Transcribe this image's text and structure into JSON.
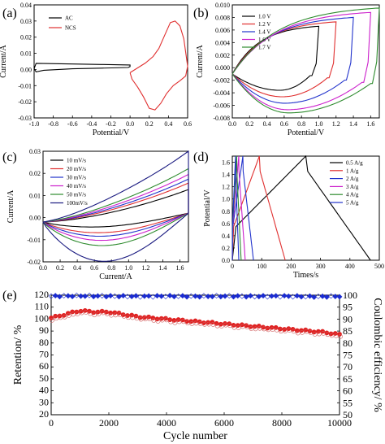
{
  "panels": {
    "a": {
      "label": "(a)"
    },
    "b": {
      "label": "(b)"
    },
    "c": {
      "label": "(c)"
    },
    "d": {
      "label": "(d)"
    },
    "e": {
      "label": "(e)"
    }
  },
  "chart_data": [
    {
      "id": "a",
      "type": "line",
      "xlabel": "Potential/V",
      "ylabel": "Current/A",
      "xlim": [
        -1.0,
        0.6
      ],
      "ylim": [
        -0.03,
        0.04
      ],
      "xticks": [
        "-1.0",
        "-0.8",
        "-0.6",
        "-0.4",
        "-0.2",
        "0.0",
        "0.2",
        "0.4",
        "0.6"
      ],
      "yticks": [
        "-0.03",
        "-0.02",
        "-0.01",
        "0.00",
        "0.01",
        "0.02",
        "0.03",
        "0.04"
      ],
      "legend_position": "top-left",
      "series": [
        {
          "name": "AC",
          "color": "#000000",
          "x": [
            -1.0,
            -0.98,
            -0.9,
            -0.6,
            -0.3,
            0.0,
            0.0,
            -0.02,
            -0.3,
            -0.6,
            -0.9,
            -0.98,
            -1.0
          ],
          "y": [
            0.0005,
            0.0038,
            0.0037,
            0.0034,
            0.0031,
            0.0028,
            0.0018,
            0.0012,
            0.0008,
            0.0004,
            -0.0005,
            -0.0015,
            0.0005
          ]
        },
        {
          "name": "NCS",
          "color": "#e03030",
          "x": [
            0.0,
            0.08,
            0.16,
            0.24,
            0.3,
            0.36,
            0.42,
            0.47,
            0.52,
            0.56,
            0.6,
            0.58,
            0.52,
            0.45,
            0.38,
            0.32,
            0.26,
            0.2,
            0.14,
            0.08,
            0.02,
            0.0
          ],
          "y": [
            -0.002,
            0.001,
            0.004,
            0.008,
            0.013,
            0.021,
            0.029,
            0.03,
            0.027,
            0.019,
            0.002,
            -0.004,
            -0.007,
            -0.01,
            -0.015,
            -0.021,
            -0.025,
            -0.024,
            -0.017,
            -0.011,
            -0.006,
            -0.002
          ]
        }
      ]
    },
    {
      "id": "b",
      "type": "line",
      "xlabel": "Potential/V",
      "ylabel": "Current/A",
      "xlim": [
        0.0,
        1.7
      ],
      "ylim": [
        -0.008,
        0.01
      ],
      "xticks": [
        "0.0",
        "0.2",
        "0.4",
        "0.6",
        "0.8",
        "1.0",
        "1.2",
        "1.4",
        "1.6"
      ],
      "yticks": [
        "-0.008",
        "-0.006",
        "-0.004",
        "-0.002",
        "0.000",
        "0.002",
        "0.004",
        "0.006",
        "0.008",
        "0.010"
      ],
      "legend_position": "top-left",
      "series": [
        {
          "name": "1.0 V",
          "color": "#000000",
          "vmax": 1.0,
          "jmax": 0.0066
        },
        {
          "name": "1.2 V",
          "color": "#e03030",
          "vmax": 1.2,
          "jmax": 0.0073
        },
        {
          "name": "1.4 V",
          "color": "#2233cc",
          "vmax": 1.4,
          "jmax": 0.008
        },
        {
          "name": "1.6 V",
          "color": "#cc22cc",
          "vmax": 1.6,
          "jmax": 0.0088
        },
        {
          "name": "1.7 V",
          "color": "#2e8b2e",
          "vmax": 1.7,
          "jmax": 0.0095
        }
      ]
    },
    {
      "id": "c",
      "type": "line",
      "xlabel": "Current/A",
      "ylabel": "Current/A",
      "xlim": [
        0.0,
        1.7
      ],
      "ylim": [
        -0.02,
        0.03
      ],
      "xticks": [
        "0.0",
        "0.2",
        "0.4",
        "0.6",
        "0.8",
        "1.0",
        "1.2",
        "1.4",
        "1.6"
      ],
      "yticks": [
        "-0.02",
        "-0.01",
        "0.00",
        "0.01",
        "0.02",
        "0.03"
      ],
      "legend_position": "top-left",
      "series": [
        {
          "name": "10 mV/s",
          "color": "#000000",
          "amp": 0.004
        },
        {
          "name": "20 mV/s",
          "color": "#e03030",
          "amp": 0.0068
        },
        {
          "name": "30 mV/s",
          "color": "#2233cc",
          "amp": 0.0085
        },
        {
          "name": "40 mV/s",
          "color": "#cc22cc",
          "amp": 0.0105
        },
        {
          "name": "50 mV/s",
          "color": "#2e8b2e",
          "amp": 0.013
        },
        {
          "name": "100mV/s",
          "color": "#1a1a80",
          "amp": 0.0205
        }
      ]
    },
    {
      "id": "d",
      "type": "line",
      "xlabel": "Times/s",
      "ylabel": "Potential/V",
      "xlim": [
        0,
        500
      ],
      "ylim": [
        0.0,
        1.7
      ],
      "xticks": [
        "0",
        "100",
        "200",
        "300",
        "400",
        "500"
      ],
      "yticks": [
        "0.0",
        "0.2",
        "0.4",
        "0.6",
        "0.8",
        "1.0",
        "1.2",
        "1.4",
        "1.6"
      ],
      "legend_position": "top-right",
      "series": [
        {
          "name": "0.5 A/g",
          "color": "#000000",
          "tc": 250,
          "td": 470
        },
        {
          "name": "1 A/g",
          "color": "#e03030",
          "tc": 92,
          "td": 180
        },
        {
          "name": "2 A/g",
          "color": "#2233cc",
          "tc": 36,
          "td": 72
        },
        {
          "name": "3 A/g",
          "color": "#cc22cc",
          "tc": 22,
          "td": 44
        },
        {
          "name": "4 A/g",
          "color": "#2e8b2e",
          "tc": 15,
          "td": 30
        },
        {
          "name": "5 A/g",
          "color": "#2233cc",
          "tc": 11,
          "td": 22
        }
      ]
    },
    {
      "id": "e",
      "type": "scatter",
      "xlabel": "Cycle number",
      "ylabel": "Retention/ %",
      "y2label": "Coulombic efficiency/ %",
      "xlim": [
        0,
        10000
      ],
      "ylim": [
        20,
        120
      ],
      "y2lim": [
        50,
        100
      ],
      "xticks": [
        "0",
        "2000",
        "4000",
        "6000",
        "8000",
        "10000"
      ],
      "yticks": [
        "20",
        "30",
        "40",
        "50",
        "60",
        "70",
        "80",
        "90",
        "100",
        "110",
        "120"
      ],
      "y2ticks": [
        "50",
        "55",
        "60",
        "65",
        "70",
        "75",
        "80",
        "85",
        "90",
        "95",
        "100"
      ],
      "series": [
        {
          "name": "Retention",
          "color": "#e02020",
          "axis": "left",
          "x": [
            0,
            500,
            800,
            1000,
            1500,
            2000,
            2500,
            3000,
            4000,
            5000,
            6000,
            7000,
            8000,
            9000,
            9500,
            10000
          ],
          "y": [
            101,
            104,
            106,
            107,
            106,
            106,
            104,
            102,
            100,
            98,
            96,
            94,
            92,
            90,
            89,
            87
          ]
        },
        {
          "name": "Coulombic efficiency",
          "color": "#1a2bd0",
          "axis": "right",
          "x": [
            0,
            1000,
            2000,
            3000,
            4000,
            5000,
            6000,
            7000,
            8000,
            9000,
            10000
          ],
          "y": [
            99.6,
            99.7,
            99.6,
            99.5,
            99.6,
            99.5,
            99.6,
            99.5,
            99.6,
            99.4,
            99.5
          ]
        }
      ]
    }
  ]
}
